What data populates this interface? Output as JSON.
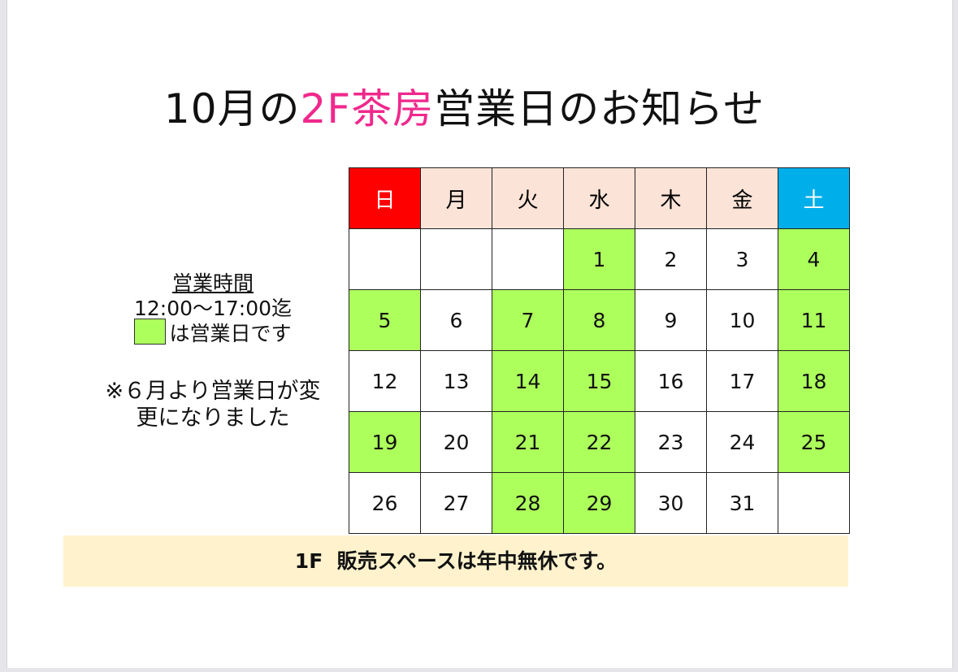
{
  "title": {
    "pre": "10月の",
    "highlight": "2F茶房",
    "post": "営業日のお知らせ",
    "highlight_color": "#f0288c"
  },
  "legend": {
    "heading": "営業時間",
    "hours": "12:00～17:00迄",
    "swatch_label": "は営業日です",
    "open_color": "#adff5c"
  },
  "note": {
    "line1": "※６月より営業日が変",
    "line2": "更になりました"
  },
  "calendar": {
    "weekdays": [
      "日",
      "月",
      "火",
      "水",
      "木",
      "金",
      "土"
    ],
    "colors": {
      "sunday": "#ff0000",
      "saturday": "#00aeea",
      "weekday": "#fbe3d7",
      "open": "#adff5c"
    },
    "weeks": [
      [
        {
          "day": ""
        },
        {
          "day": ""
        },
        {
          "day": ""
        },
        {
          "day": "1",
          "open": true
        },
        {
          "day": "2"
        },
        {
          "day": "3"
        },
        {
          "day": "4",
          "open": true
        }
      ],
      [
        {
          "day": "5",
          "open": true
        },
        {
          "day": "6"
        },
        {
          "day": "7",
          "open": true
        },
        {
          "day": "8",
          "open": true
        },
        {
          "day": "9"
        },
        {
          "day": "10"
        },
        {
          "day": "11",
          "open": true
        }
      ],
      [
        {
          "day": "12"
        },
        {
          "day": "13"
        },
        {
          "day": "14",
          "open": true
        },
        {
          "day": "15",
          "open": true
        },
        {
          "day": "16"
        },
        {
          "day": "17"
        },
        {
          "day": "18",
          "open": true
        }
      ],
      [
        {
          "day": "19",
          "open": true
        },
        {
          "day": "20"
        },
        {
          "day": "21",
          "open": true
        },
        {
          "day": "22",
          "open": true
        },
        {
          "day": "23"
        },
        {
          "day": "24"
        },
        {
          "day": "25",
          "open": true
        }
      ],
      [
        {
          "day": "26"
        },
        {
          "day": "27"
        },
        {
          "day": "28",
          "open": true
        },
        {
          "day": "29",
          "open": true
        },
        {
          "day": "30"
        },
        {
          "day": "31"
        },
        {
          "day": ""
        }
      ]
    ]
  },
  "banner": {
    "text": "1F  販売スペースは年中無休です。"
  }
}
